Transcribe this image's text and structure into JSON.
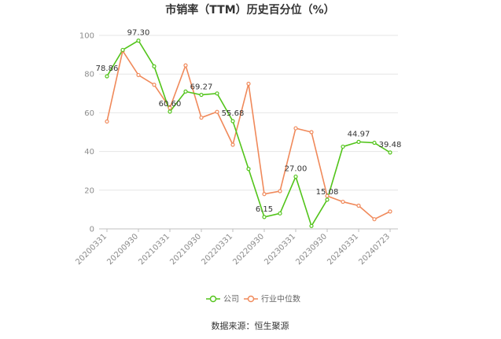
{
  "chart_data": {
    "type": "line",
    "title": "市销率（TTM）历史百分位（%）",
    "source": "数据来源：恒生聚源",
    "ylim": [
      0,
      100
    ],
    "yticks": [
      0,
      20,
      40,
      60,
      80,
      100
    ],
    "xtick_labels": [
      "20200331",
      "20200930",
      "20210331",
      "20210930",
      "20220331",
      "20220930",
      "20230331",
      "20230930",
      "20240331",
      "20240723"
    ],
    "x": [
      "20200331",
      "20200630",
      "20200930",
      "20201231",
      "20210331",
      "20210630",
      "20210930",
      "20211231",
      "20220331",
      "20220630",
      "20220930",
      "20221231",
      "20230331",
      "20230630",
      "20230930",
      "20231231",
      "20240331",
      "20240630",
      "20240723"
    ],
    "grid": true,
    "legend_position": "bottom-center",
    "series": [
      {
        "name": "公司",
        "color": "#52c41a",
        "values": [
          78.86,
          92.5,
          97.3,
          84.0,
          60.6,
          71.0,
          69.27,
          70.0,
          55.68,
          31.0,
          6.15,
          8.0,
          27.0,
          1.5,
          15.08,
          42.5,
          44.97,
          44.5,
          39.48
        ]
      },
      {
        "name": "行业中位数",
        "color": "#f0895a",
        "values": [
          55.5,
          92.0,
          79.5,
          74.5,
          62.5,
          84.5,
          57.5,
          60.5,
          43.5,
          75.0,
          18.0,
          19.5,
          52.0,
          50.0,
          17.0,
          14.0,
          12.0,
          5.0,
          9.0
        ]
      }
    ],
    "annotations": [
      {
        "series": 0,
        "index": 0,
        "text": "78.86"
      },
      {
        "series": 0,
        "index": 2,
        "text": "97.30"
      },
      {
        "series": 0,
        "index": 4,
        "text": "60.60"
      },
      {
        "series": 0,
        "index": 6,
        "text": "69.27"
      },
      {
        "series": 0,
        "index": 8,
        "text": "55.68"
      },
      {
        "series": 0,
        "index": 10,
        "text": "6.15"
      },
      {
        "series": 0,
        "index": 12,
        "text": "27.00"
      },
      {
        "series": 0,
        "index": 14,
        "text": "15.08"
      },
      {
        "series": 0,
        "index": 16,
        "text": "44.97"
      },
      {
        "series": 0,
        "index": 18,
        "text": "39.48"
      }
    ]
  }
}
